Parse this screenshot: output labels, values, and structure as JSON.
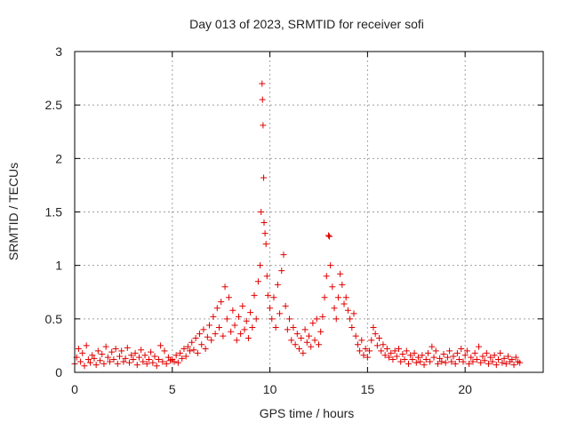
{
  "chart_data": {
    "type": "scatter",
    "title": "Day 013 of 2023, SRMTID for receiver sofi",
    "xlabel": "GPS time / hours",
    "ylabel": "SRMTID / TECUs",
    "xlim": [
      0,
      24
    ],
    "ylim": [
      0,
      3
    ],
    "x_ticks": [
      0,
      5,
      10,
      15,
      20
    ],
    "x_tick_labels": [
      "0",
      "5",
      "10",
      "15",
      "20"
    ],
    "y_ticks": [
      0,
      0.5,
      1,
      1.5,
      2,
      2.5,
      3
    ],
    "y_tick_labels": [
      "0",
      "0.5",
      "1",
      "1.5",
      "2",
      "2.5",
      "3"
    ],
    "grid": true,
    "marker": "+",
    "marker_color": "#e00000",
    "series": [
      {
        "name": "SRMTID",
        "points": [
          [
            0.0,
            0.08
          ],
          [
            0.1,
            0.14
          ],
          [
            0.2,
            0.22
          ],
          [
            0.3,
            0.1
          ],
          [
            0.4,
            0.18
          ],
          [
            0.5,
            0.06
          ],
          [
            0.6,
            0.25
          ],
          [
            0.7,
            0.12
          ],
          [
            0.8,
            0.09
          ],
          [
            0.9,
            0.16
          ],
          [
            1.0,
            0.13
          ],
          [
            1.1,
            0.07
          ],
          [
            1.2,
            0.2
          ],
          [
            1.3,
            0.11
          ],
          [
            1.4,
            0.17
          ],
          [
            1.5,
            0.08
          ],
          [
            1.6,
            0.24
          ],
          [
            1.7,
            0.14
          ],
          [
            1.8,
            0.1
          ],
          [
            1.9,
            0.19
          ],
          [
            2.0,
            0.12
          ],
          [
            2.1,
            0.22
          ],
          [
            2.2,
            0.08
          ],
          [
            2.3,
            0.15
          ],
          [
            2.4,
            0.2
          ],
          [
            2.5,
            0.1
          ],
          [
            2.6,
            0.13
          ],
          [
            2.7,
            0.23
          ],
          [
            2.8,
            0.09
          ],
          [
            2.9,
            0.16
          ],
          [
            3.0,
            0.12
          ],
          [
            3.1,
            0.18
          ],
          [
            3.2,
            0.07
          ],
          [
            3.3,
            0.14
          ],
          [
            3.4,
            0.21
          ],
          [
            3.5,
            0.1
          ],
          [
            3.6,
            0.16
          ],
          [
            3.7,
            0.08
          ],
          [
            3.8,
            0.12
          ],
          [
            3.9,
            0.19
          ],
          [
            4.0,
            0.09
          ],
          [
            4.1,
            0.15
          ],
          [
            4.2,
            0.06
          ],
          [
            4.3,
            0.12
          ],
          [
            4.4,
            0.25
          ],
          [
            4.5,
            0.1
          ],
          [
            4.6,
            0.2
          ],
          [
            4.7,
            0.08
          ],
          [
            4.8,
            0.14
          ],
          [
            4.9,
            0.11
          ],
          [
            5.0,
            0.12
          ],
          [
            5.1,
            0.1
          ],
          [
            5.2,
            0.16
          ],
          [
            5.3,
            0.09
          ],
          [
            5.4,
            0.18
          ],
          [
            5.5,
            0.13
          ],
          [
            5.6,
            0.22
          ],
          [
            5.7,
            0.15
          ],
          [
            5.8,
            0.24
          ],
          [
            5.9,
            0.2
          ],
          [
            6.0,
            0.28
          ],
          [
            6.1,
            0.21
          ],
          [
            6.2,
            0.32
          ],
          [
            6.3,
            0.18
          ],
          [
            6.4,
            0.36
          ],
          [
            6.5,
            0.26
          ],
          [
            6.6,
            0.4
          ],
          [
            6.7,
            0.22
          ],
          [
            6.8,
            0.33
          ],
          [
            6.9,
            0.44
          ],
          [
            7.0,
            0.3
          ],
          [
            7.1,
            0.52
          ],
          [
            7.2,
            0.36
          ],
          [
            7.3,
            0.6
          ],
          [
            7.4,
            0.42
          ],
          [
            7.5,
            0.66
          ],
          [
            7.6,
            0.34
          ],
          [
            7.7,
            0.8
          ],
          [
            7.8,
            0.5
          ],
          [
            7.9,
            0.7
          ],
          [
            8.0,
            0.38
          ],
          [
            8.1,
            0.58
          ],
          [
            8.2,
            0.44
          ],
          [
            8.3,
            0.3
          ],
          [
            8.4,
            0.52
          ],
          [
            8.5,
            0.36
          ],
          [
            8.6,
            0.62
          ],
          [
            8.7,
            0.4
          ],
          [
            8.8,
            0.48
          ],
          [
            8.9,
            0.32
          ],
          [
            9.0,
            0.56
          ],
          [
            9.1,
            0.42
          ],
          [
            9.2,
            0.72
          ],
          [
            9.3,
            0.5
          ],
          [
            9.4,
            0.85
          ],
          [
            9.5,
            1.0
          ],
          [
            9.55,
            1.5
          ],
          [
            9.6,
            2.7
          ],
          [
            9.62,
            2.55
          ],
          [
            9.65,
            2.31
          ],
          [
            9.68,
            1.82
          ],
          [
            9.7,
            1.4
          ],
          [
            9.75,
            1.3
          ],
          [
            9.8,
            1.2
          ],
          [
            9.85,
            0.9
          ],
          [
            9.9,
            0.72
          ],
          [
            10.0,
            0.6
          ],
          [
            10.1,
            0.5
          ],
          [
            10.2,
            0.7
          ],
          [
            10.3,
            0.42
          ],
          [
            10.4,
            0.82
          ],
          [
            10.5,
            0.55
          ],
          [
            10.6,
            0.95
          ],
          [
            10.7,
            1.1
          ],
          [
            10.8,
            0.62
          ],
          [
            10.9,
            0.4
          ],
          [
            11.0,
            0.5
          ],
          [
            11.1,
            0.3
          ],
          [
            11.2,
            0.42
          ],
          [
            11.3,
            0.26
          ],
          [
            11.4,
            0.36
          ],
          [
            11.5,
            0.22
          ],
          [
            11.6,
            0.32
          ],
          [
            11.7,
            0.18
          ],
          [
            11.8,
            0.4
          ],
          [
            11.9,
            0.28
          ],
          [
            12.0,
            0.34
          ],
          [
            12.1,
            0.24
          ],
          [
            12.2,
            0.46
          ],
          [
            12.3,
            0.3
          ],
          [
            12.4,
            0.5
          ],
          [
            12.5,
            0.26
          ],
          [
            12.6,
            0.38
          ],
          [
            12.7,
            0.52
          ],
          [
            12.8,
            0.7
          ],
          [
            12.9,
            0.9
          ],
          [
            13.0,
            1.28
          ],
          [
            13.05,
            1.27
          ],
          [
            13.1,
            1.0
          ],
          [
            13.2,
            0.8
          ],
          [
            13.3,
            0.6
          ],
          [
            13.4,
            0.5
          ],
          [
            13.5,
            0.7
          ],
          [
            13.6,
            0.92
          ],
          [
            13.7,
            0.82
          ],
          [
            13.8,
            0.64
          ],
          [
            13.9,
            0.7
          ],
          [
            14.0,
            0.58
          ],
          [
            14.1,
            0.5
          ],
          [
            14.2,
            0.42
          ],
          [
            14.3,
            0.55
          ],
          [
            14.4,
            0.34
          ],
          [
            14.5,
            0.26
          ],
          [
            14.6,
            0.2
          ],
          [
            14.7,
            0.3
          ],
          [
            14.8,
            0.16
          ],
          [
            14.9,
            0.22
          ],
          [
            15.0,
            0.14
          ],
          [
            15.1,
            0.2
          ],
          [
            15.2,
            0.3
          ],
          [
            15.3,
            0.42
          ],
          [
            15.4,
            0.36
          ],
          [
            15.5,
            0.25
          ],
          [
            15.6,
            0.32
          ],
          [
            15.7,
            0.2
          ],
          [
            15.8,
            0.26
          ],
          [
            15.9,
            0.16
          ],
          [
            16.0,
            0.22
          ],
          [
            16.1,
            0.14
          ],
          [
            16.2,
            0.18
          ],
          [
            16.3,
            0.12
          ],
          [
            16.4,
            0.2
          ],
          [
            16.5,
            0.15
          ],
          [
            16.6,
            0.22
          ],
          [
            16.7,
            0.1
          ],
          [
            16.8,
            0.17
          ],
          [
            16.9,
            0.12
          ],
          [
            17.0,
            0.2
          ],
          [
            17.1,
            0.08
          ],
          [
            17.2,
            0.16
          ],
          [
            17.3,
            0.12
          ],
          [
            17.4,
            0.18
          ],
          [
            17.5,
            0.09
          ],
          [
            17.6,
            0.14
          ],
          [
            17.7,
            0.1
          ],
          [
            17.8,
            0.16
          ],
          [
            17.9,
            0.07
          ],
          [
            18.0,
            0.12
          ],
          [
            18.1,
            0.18
          ],
          [
            18.2,
            0.1
          ],
          [
            18.3,
            0.24
          ],
          [
            18.4,
            0.14
          ],
          [
            18.5,
            0.2
          ],
          [
            18.6,
            0.08
          ],
          [
            18.7,
            0.13
          ],
          [
            18.8,
            0.1
          ],
          [
            18.9,
            0.17
          ],
          [
            19.0,
            0.09
          ],
          [
            19.1,
            0.14
          ],
          [
            19.2,
            0.2
          ],
          [
            19.3,
            0.1
          ],
          [
            19.4,
            0.15
          ],
          [
            19.5,
            0.08
          ],
          [
            19.6,
            0.18
          ],
          [
            19.7,
            0.12
          ],
          [
            19.8,
            0.22
          ],
          [
            19.9,
            0.1
          ],
          [
            20.0,
            0.16
          ],
          [
            20.1,
            0.2
          ],
          [
            20.2,
            0.08
          ],
          [
            20.3,
            0.14
          ],
          [
            20.4,
            0.1
          ],
          [
            20.5,
            0.18
          ],
          [
            20.6,
            0.12
          ],
          [
            20.7,
            0.24
          ],
          [
            20.8,
            0.09
          ],
          [
            20.9,
            0.15
          ],
          [
            21.0,
            0.11
          ],
          [
            21.1,
            0.18
          ],
          [
            21.2,
            0.08
          ],
          [
            21.3,
            0.14
          ],
          [
            21.4,
            0.1
          ],
          [
            21.5,
            0.16
          ],
          [
            21.6,
            0.07
          ],
          [
            21.7,
            0.12
          ],
          [
            21.8,
            0.18
          ],
          [
            21.9,
            0.09
          ],
          [
            22.0,
            0.13
          ],
          [
            22.1,
            0.08
          ],
          [
            22.2,
            0.15
          ],
          [
            22.3,
            0.1
          ],
          [
            22.4,
            0.12
          ],
          [
            22.5,
            0.07
          ],
          [
            22.6,
            0.14
          ],
          [
            22.7,
            0.1
          ],
          [
            22.8,
            0.09
          ]
        ]
      }
    ]
  }
}
